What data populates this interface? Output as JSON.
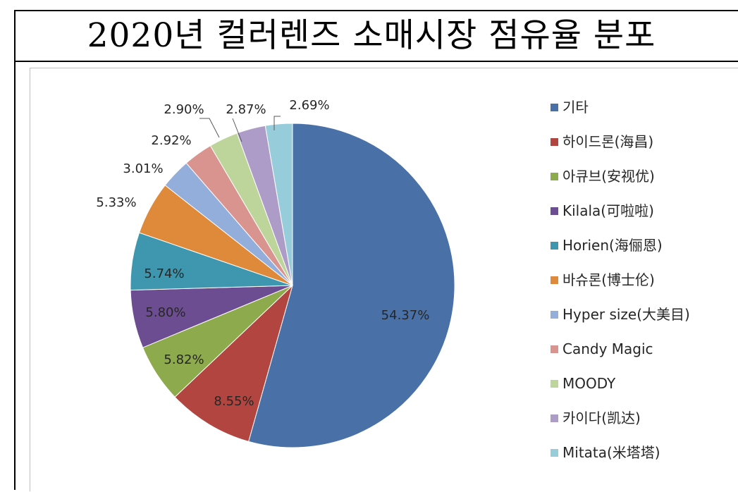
{
  "page": {
    "title": "2020년 컬러렌즈 소매시장 점유율 분포"
  },
  "chart_data": {
    "type": "pie",
    "title": "",
    "legend_position": "right",
    "value_format": "percent",
    "categories": [
      "기타",
      "하이드론(海昌)",
      "아큐브(安视优)",
      "Kilala(可啦啦)",
      "Horien(海俪恩)",
      "바슈론(博士伦)",
      "Hyper size(大美目)",
      "Candy Magic",
      "MOODY",
      "카이다(凯达)",
      "Mitata(米塔塔)"
    ],
    "values": [
      54.37,
      8.55,
      5.82,
      5.8,
      5.74,
      5.33,
      3.01,
      2.92,
      2.9,
      2.87,
      2.69
    ],
    "labels": [
      "54.37%",
      "8.55%",
      "5.82%",
      "5.80%",
      "5.74%",
      "5.33%",
      "3.01%",
      "2.92%",
      "2.90%",
      "2.87%",
      "2.69%"
    ],
    "colors": [
      "#4A70A8",
      "#B2453F",
      "#8DAA4C",
      "#6D4D92",
      "#3E97AE",
      "#DE8A3A",
      "#93AEDB",
      "#DA9490",
      "#BDD59A",
      "#AE9CC8",
      "#97CDDA"
    ]
  }
}
